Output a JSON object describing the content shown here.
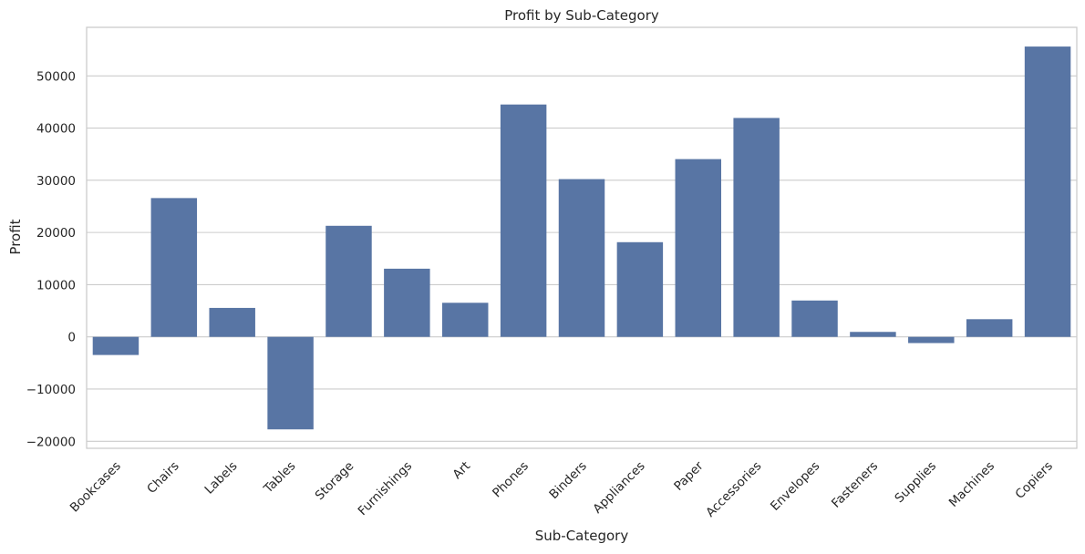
{
  "chart_data": {
    "type": "bar",
    "title": "Profit by Sub-Category",
    "xlabel": "Sub-Category",
    "ylabel": "Profit",
    "categories": [
      "Bookcases",
      "Chairs",
      "Labels",
      "Tables",
      "Storage",
      "Furnishings",
      "Art",
      "Phones",
      "Binders",
      "Appliances",
      "Paper",
      "Accessories",
      "Envelopes",
      "Fasteners",
      "Supplies",
      "Machines",
      "Copiers"
    ],
    "values": [
      -3473,
      26590,
      5546,
      -17725,
      21279,
      13059,
      6528,
      44516,
      30222,
      18138,
      34054,
      41937,
      6964,
      950,
      -1189,
      3385,
      55618
    ],
    "ylim": [
      -21350,
      59300
    ],
    "yticks": [
      -20000,
      -10000,
      0,
      10000,
      20000,
      30000,
      40000,
      50000
    ],
    "ytick_labels": [
      "−20000",
      "−10000",
      "0",
      "10000",
      "20000",
      "30000",
      "40000",
      "50000"
    ],
    "grid": "horizontal",
    "bar_color": "#5875a4",
    "grid_color": "#cccccc",
    "frame_color": "#cccccc"
  }
}
